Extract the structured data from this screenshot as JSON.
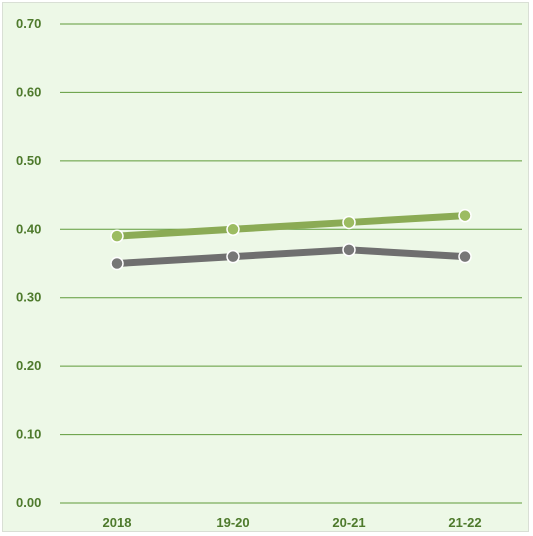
{
  "chart_data": {
    "type": "line",
    "categories": [
      "2018",
      "19-20",
      "20-21",
      "21-22"
    ],
    "series": [
      {
        "values": [
          0.39,
          0.4,
          0.41,
          0.42
        ],
        "color": "#8bab55",
        "marker_color": "#9cbc62"
      },
      {
        "values": [
          0.35,
          0.36,
          0.37,
          0.36
        ],
        "color": "#6f6f6f",
        "marker_color": "#777777"
      }
    ],
    "ylim": [
      0.0,
      0.7
    ],
    "yticks": [
      0.0,
      0.1,
      0.2,
      0.3,
      0.4,
      0.5,
      0.6,
      0.7
    ],
    "ytick_labels": [
      "0.00",
      "0.10",
      "0.20",
      "0.30",
      "0.40",
      "0.50",
      "0.60",
      "0.70"
    ],
    "grid": true,
    "grid_color": "#5f9a3a",
    "background_color": "#edf8e7",
    "legend": "none",
    "title": "",
    "xlabel": "",
    "ylabel": ""
  }
}
